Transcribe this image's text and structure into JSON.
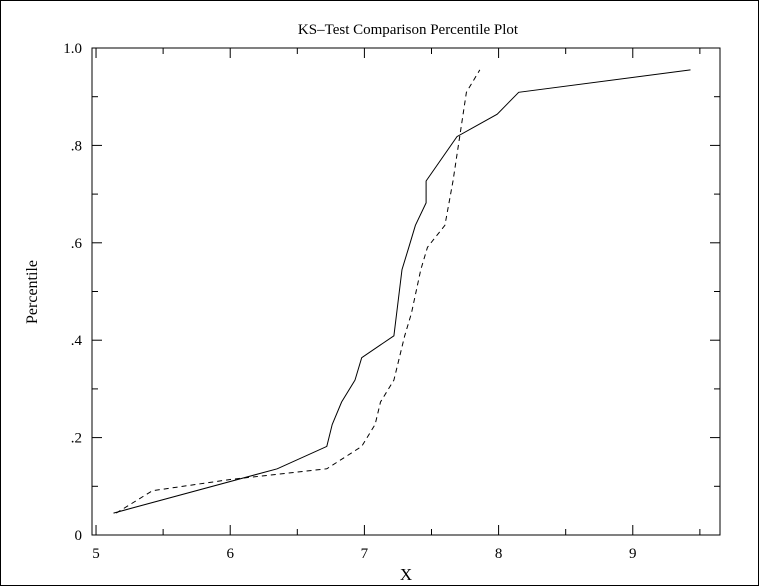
{
  "chart_data": {
    "type": "line",
    "title": "KS–Test Comparison Percentile Plot",
    "xlabel": "X",
    "ylabel": "Percentile",
    "xlim": [
      4.97,
      9.65
    ],
    "ylim": [
      0,
      1.0
    ],
    "x_ticks": [
      5,
      6,
      7,
      8,
      9
    ],
    "x_tick_labels": [
      "5",
      "6",
      "7",
      "8",
      "9"
    ],
    "y_ticks": [
      0,
      0.2,
      0.4,
      0.6,
      0.8,
      1.0
    ],
    "y_tick_labels": [
      "0",
      ".2",
      ".4",
      ".6",
      ".8",
      "1.0"
    ],
    "grid": false,
    "legend": "none",
    "series": [
      {
        "style": "solid",
        "color": "#000000",
        "points": [
          [
            5.13,
            0.045
          ],
          [
            6.35,
            0.136
          ],
          [
            6.72,
            0.182
          ],
          [
            6.76,
            0.227
          ],
          [
            6.83,
            0.273
          ],
          [
            6.93,
            0.318
          ],
          [
            6.98,
            0.364
          ],
          [
            7.22,
            0.409
          ],
          [
            7.28,
            0.545
          ],
          [
            7.33,
            0.59
          ],
          [
            7.38,
            0.636
          ],
          [
            7.46,
            0.682
          ],
          [
            7.46,
            0.727
          ],
          [
            7.69,
            0.818
          ],
          [
            7.99,
            0.864
          ],
          [
            8.15,
            0.909
          ],
          [
            9.43,
            0.955
          ]
        ]
      },
      {
        "style": "dashed",
        "color": "#000000",
        "points": [
          [
            5.15,
            0.045
          ],
          [
            5.42,
            0.091
          ],
          [
            6.0,
            0.114
          ],
          [
            6.72,
            0.136
          ],
          [
            6.98,
            0.182
          ],
          [
            7.08,
            0.227
          ],
          [
            7.12,
            0.273
          ],
          [
            7.22,
            0.318
          ],
          [
            7.3,
            0.409
          ],
          [
            7.35,
            0.455
          ],
          [
            7.42,
            0.545
          ],
          [
            7.47,
            0.591
          ],
          [
            7.6,
            0.636
          ],
          [
            7.66,
            0.727
          ],
          [
            7.76,
            0.909
          ],
          [
            7.86,
            0.955
          ]
        ]
      }
    ]
  }
}
